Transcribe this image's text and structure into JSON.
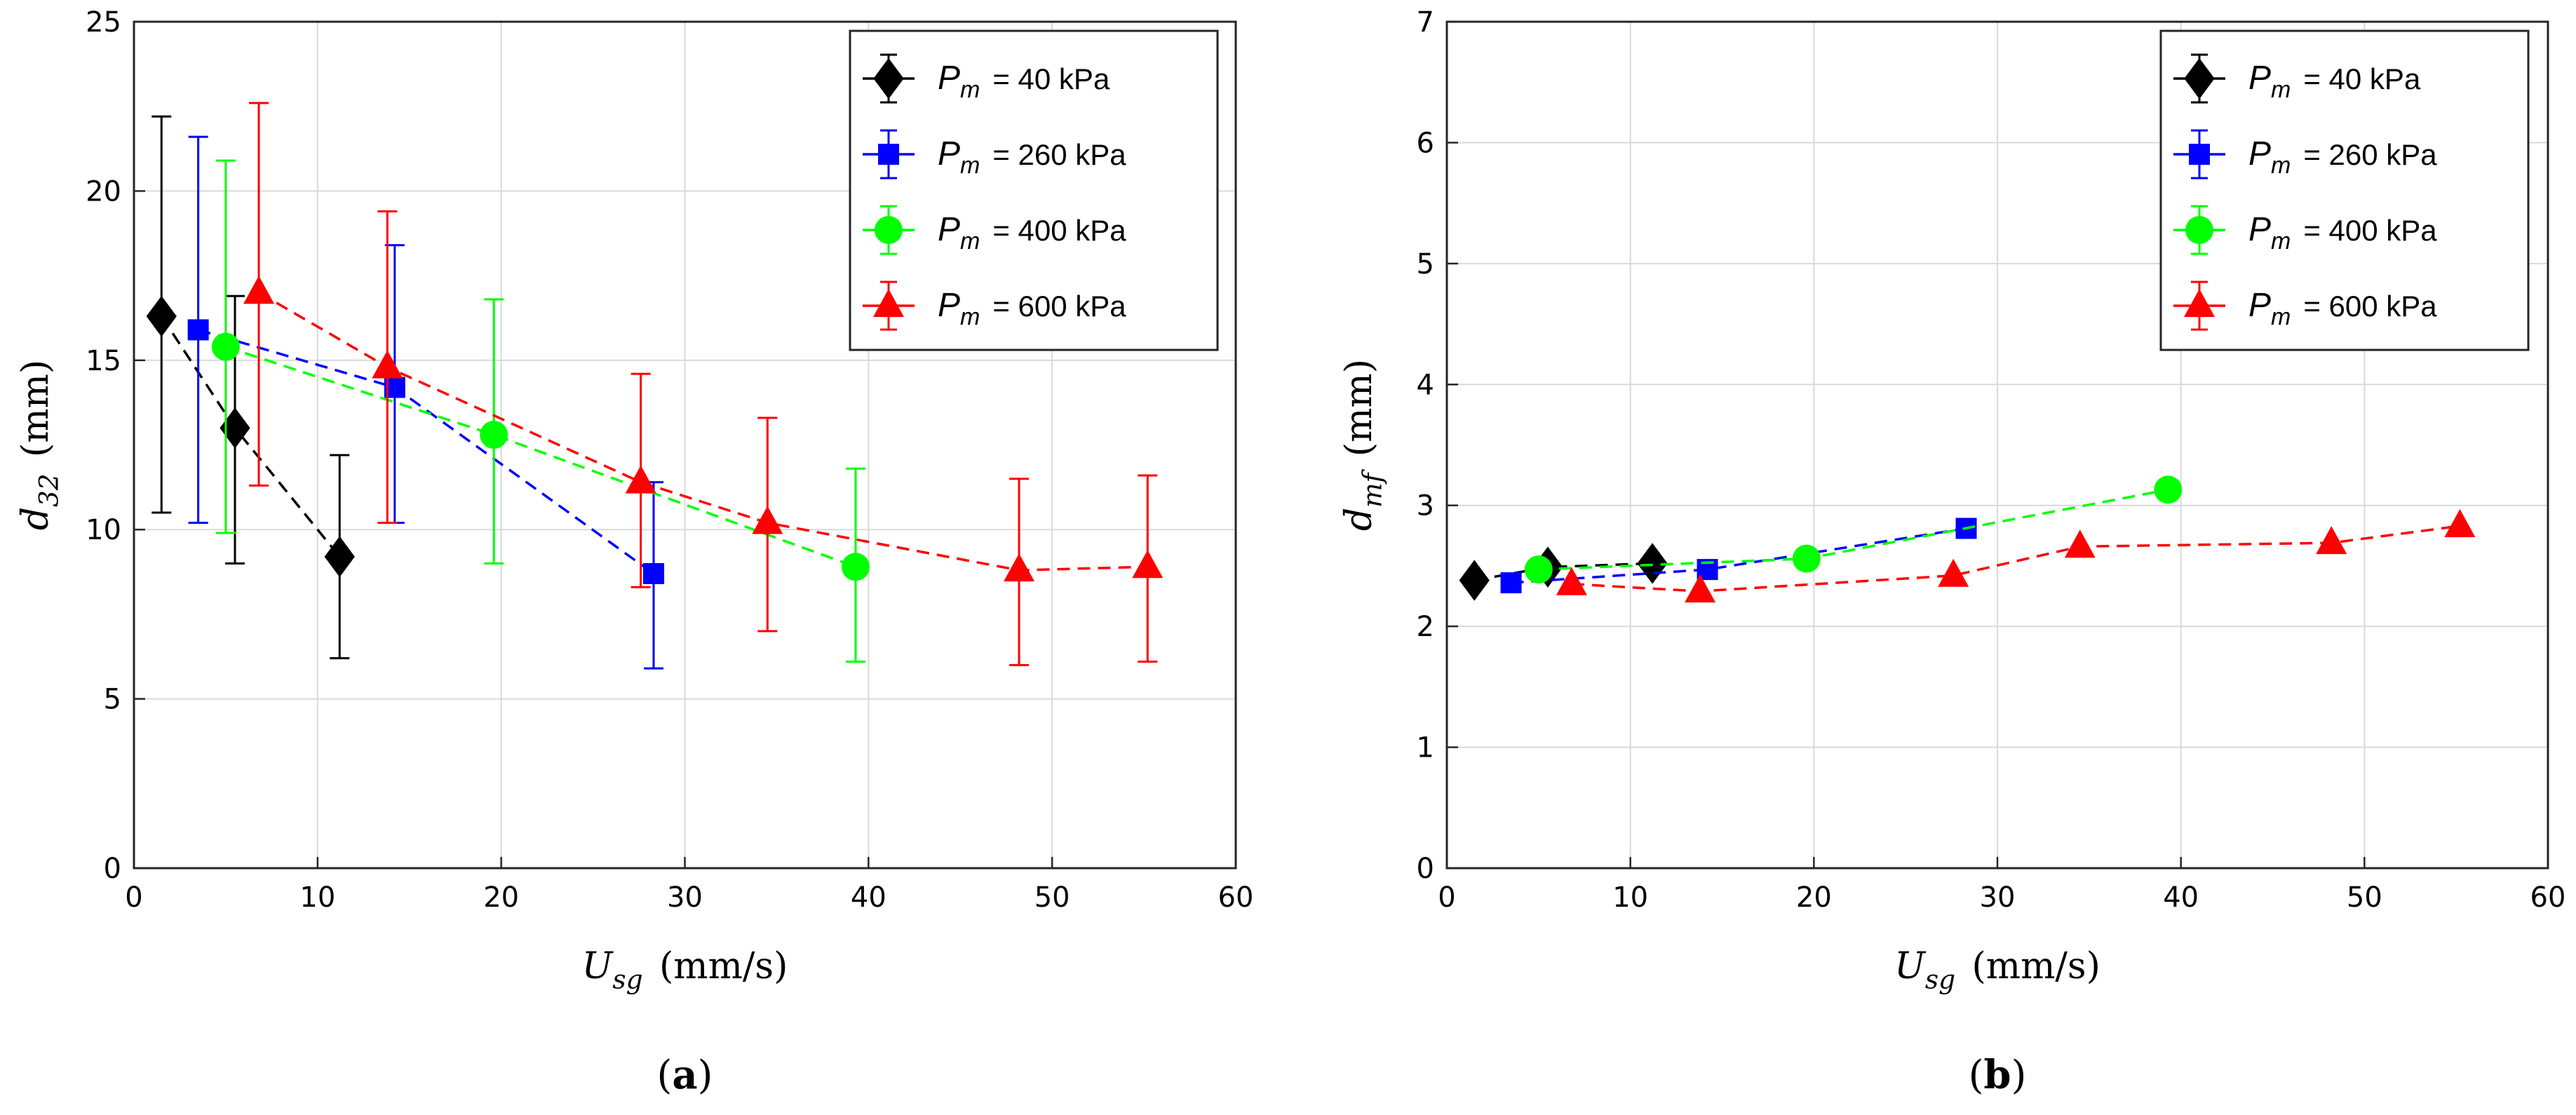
{
  "chart_data": [
    {
      "panel_label": "a",
      "type": "line",
      "xlabel": {
        "symbol": "U",
        "subscript": "sg",
        "unit": "(mm/s)"
      },
      "ylabel": {
        "symbol": "d",
        "subscript": "32",
        "unit": "(mm)"
      },
      "xlim": [
        0,
        60
      ],
      "ylim": [
        0,
        25
      ],
      "xticks": [
        "0",
        "10",
        "20",
        "30",
        "40",
        "50",
        "60"
      ],
      "yticks": [
        "0",
        "5",
        "10",
        "15",
        "20",
        "25"
      ],
      "grid": true,
      "legend_position": "top-right",
      "series": [
        {
          "symbol": "P",
          "subscript": "m",
          "value_text": "= 40 kPa",
          "color": "#000000",
          "marker": "diamond",
          "x": [
            1.5,
            5.5,
            11.2
          ],
          "y": [
            16.3,
            13.0,
            9.2
          ],
          "err_low": [
            10.5,
            9.0,
            6.2
          ],
          "err_high": [
            22.2,
            16.9,
            12.2
          ]
        },
        {
          "symbol": "P",
          "subscript": "m",
          "value_text": "= 260 kPa",
          "color": "#0000ff",
          "marker": "square",
          "x": [
            3.5,
            14.2,
            28.3
          ],
          "y": [
            15.9,
            14.2,
            8.7
          ],
          "err_low": [
            10.2,
            10.2,
            5.9
          ],
          "err_high": [
            21.6,
            18.4,
            11.4
          ]
        },
        {
          "symbol": "P",
          "subscript": "m",
          "value_text": "= 400 kPa",
          "color": "#00ff00",
          "marker": "circle",
          "x": [
            5.0,
            19.6,
            39.3
          ],
          "y": [
            15.4,
            12.8,
            8.9
          ],
          "err_low": [
            9.9,
            9.0,
            6.1
          ],
          "err_high": [
            20.9,
            16.8,
            11.8
          ]
        },
        {
          "symbol": "P",
          "subscript": "m",
          "value_text": "= 600 kPa",
          "color": "#ff0000",
          "marker": "triangle",
          "x": [
            6.8,
            13.8,
            27.6,
            34.5,
            48.2,
            55.2
          ],
          "y": [
            17.0,
            14.8,
            11.4,
            10.2,
            8.8,
            8.9
          ],
          "err_low": [
            11.3,
            10.2,
            8.3,
            7.0,
            6.0,
            6.1
          ],
          "err_high": [
            22.6,
            19.4,
            14.6,
            13.3,
            11.5,
            11.6
          ]
        }
      ]
    },
    {
      "panel_label": "b",
      "type": "line",
      "xlabel": {
        "symbol": "U",
        "subscript": "sg",
        "unit": "(mm/s)"
      },
      "ylabel": {
        "symbol": "d",
        "subscript": "mf",
        "unit": "(mm)"
      },
      "xlim": [
        0,
        60
      ],
      "ylim": [
        0,
        7
      ],
      "xticks": [
        "0",
        "10",
        "20",
        "30",
        "40",
        "50",
        "60"
      ],
      "yticks": [
        "0",
        "1",
        "2",
        "3",
        "4",
        "5",
        "6",
        "7"
      ],
      "grid": true,
      "legend_position": "top-right",
      "series": [
        {
          "symbol": "P",
          "subscript": "m",
          "value_text": "= 40 kPa",
          "color": "#000000",
          "marker": "diamond",
          "x": [
            1.5,
            5.5,
            11.2
          ],
          "y": [
            2.38,
            2.49,
            2.52
          ]
        },
        {
          "symbol": "P",
          "subscript": "m",
          "value_text": "= 260 kPa",
          "color": "#0000ff",
          "marker": "square",
          "x": [
            3.5,
            14.2,
            28.3
          ],
          "y": [
            2.36,
            2.47,
            2.81
          ]
        },
        {
          "symbol": "P",
          "subscript": "m",
          "value_text": "= 400 kPa",
          "color": "#00ff00",
          "marker": "circle",
          "x": [
            5.0,
            19.6,
            39.3
          ],
          "y": [
            2.47,
            2.56,
            3.13
          ]
        },
        {
          "symbol": "P",
          "subscript": "m",
          "value_text": "= 600 kPa",
          "color": "#ff0000",
          "marker": "triangle",
          "x": [
            6.8,
            13.8,
            27.6,
            34.5,
            48.2,
            55.2
          ],
          "y": [
            2.35,
            2.29,
            2.42,
            2.66,
            2.69,
            2.83
          ]
        }
      ]
    }
  ]
}
